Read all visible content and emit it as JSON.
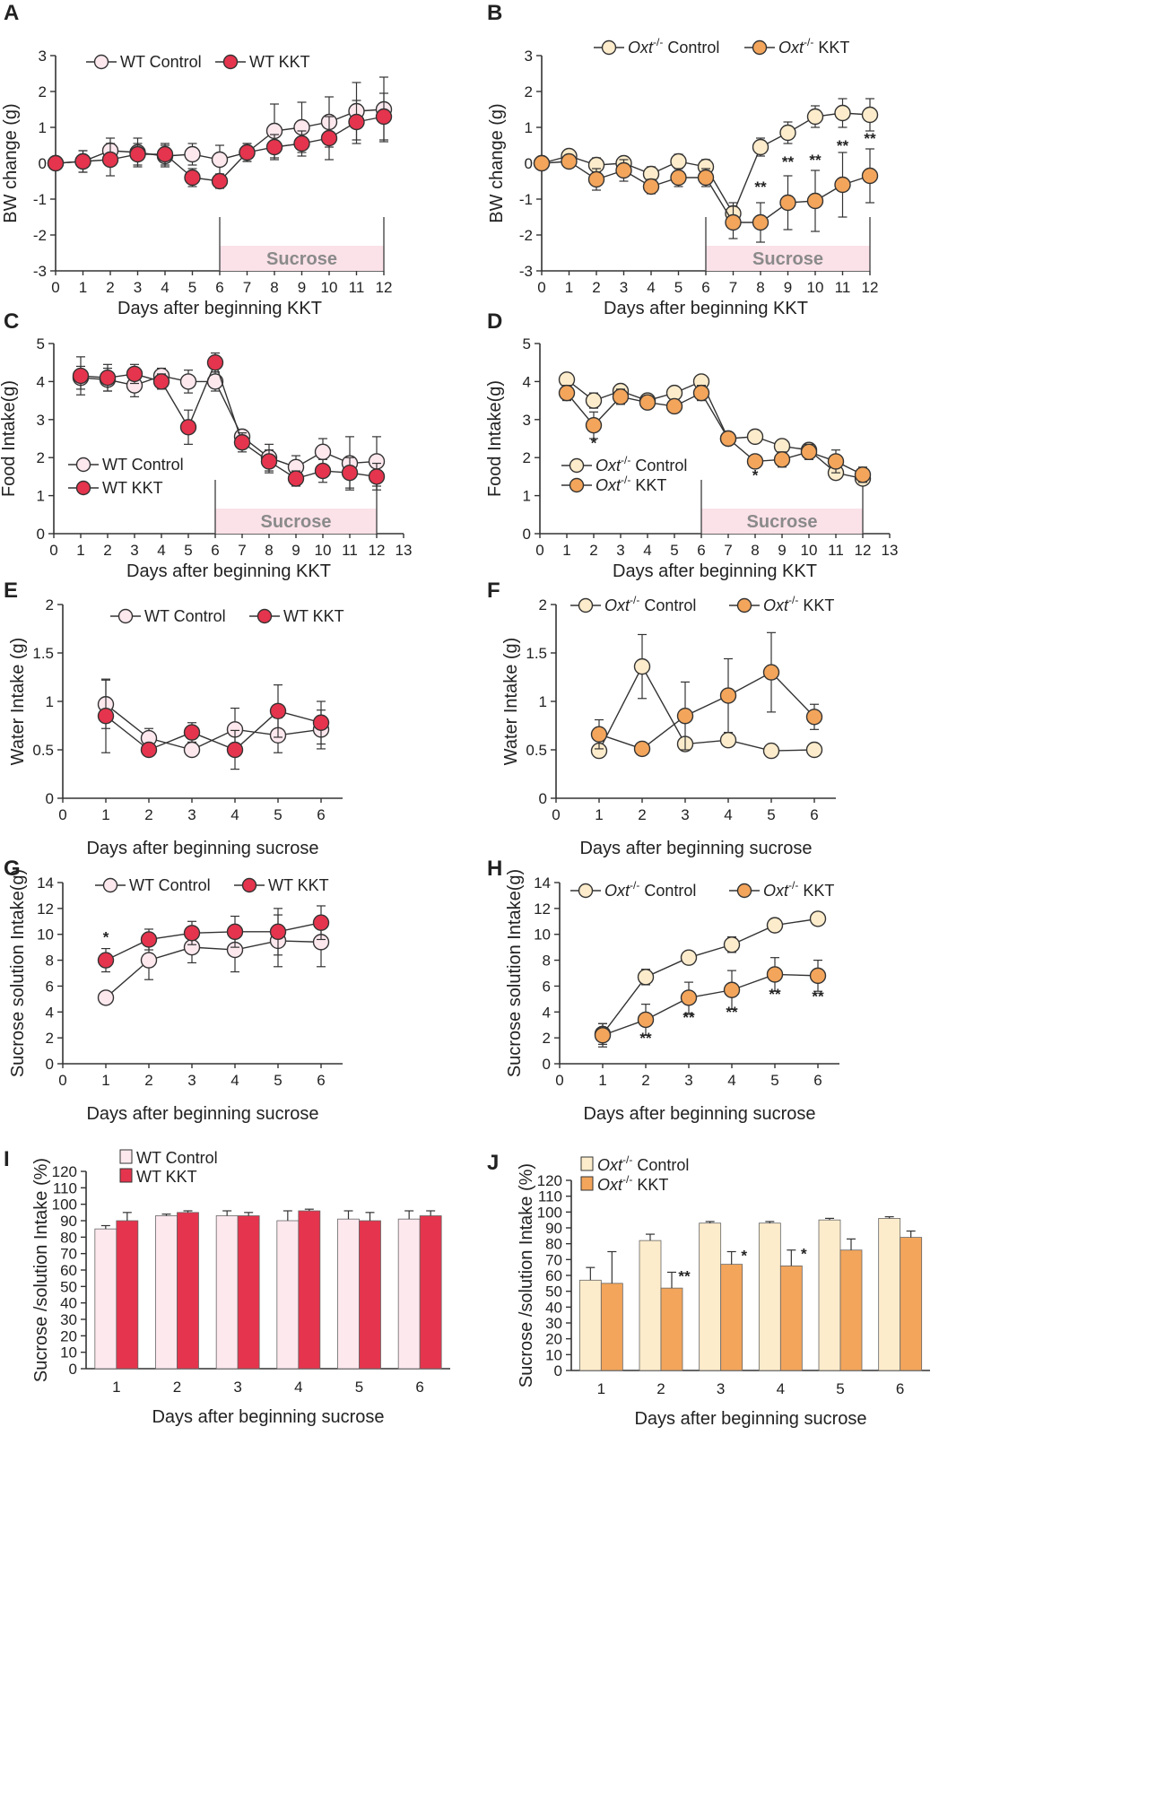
{
  "colors": {
    "wt_control": "#fde8ee",
    "wt_kkt": "#e5344d",
    "oxt_control": "#fdeccb",
    "oxt_kkt": "#f3a55b",
    "sucrose_band": "#fbe1e8",
    "axis": "#333333"
  },
  "chart_data": [
    {
      "id": "A",
      "type": "line",
      "xlabel": "Days after beginning  KKT",
      "ylabel": "BW change (g)",
      "xlim": [
        0,
        12
      ],
      "ylim": [
        -3,
        3
      ],
      "xticks": [
        0,
        1,
        2,
        3,
        4,
        5,
        6,
        7,
        8,
        9,
        10,
        11,
        12
      ],
      "yticks": [
        -3,
        -2,
        -1,
        0,
        1,
        2,
        3
      ],
      "x": [
        0,
        1,
        2,
        3,
        4,
        5,
        6,
        7,
        8,
        9,
        10,
        11,
        12
      ],
      "series": [
        {
          "name": "WT Control",
          "color_key": "wt_control",
          "values": [
            0,
            0.05,
            0.35,
            0.3,
            0.2,
            0.25,
            0.1,
            0.3,
            0.9,
            1.0,
            1.15,
            1.45,
            1.5
          ],
          "errors": [
            0,
            0.3,
            0.35,
            0.4,
            0.3,
            0.3,
            0.4,
            0.25,
            0.75,
            0.7,
            0.7,
            0.8,
            0.9
          ]
        },
        {
          "name": "WT KKT",
          "color_key": "wt_kkt",
          "values": [
            0,
            0.05,
            0.1,
            0.25,
            0.25,
            -0.4,
            -0.5,
            0.3,
            0.45,
            0.55,
            0.7,
            1.15,
            1.3
          ],
          "errors": [
            0,
            0.3,
            0.45,
            0.3,
            0.3,
            0.25,
            0.2,
            0.25,
            0.35,
            0.35,
            0.6,
            0.6,
            0.65
          ]
        }
      ],
      "sucrose_band": {
        "from": 6,
        "to": 12,
        "label": "Sucrose"
      },
      "significance": []
    },
    {
      "id": "B",
      "type": "line",
      "xlabel": "Days after beginning  KKT",
      "ylabel": "BW change (g)",
      "xlim": [
        0,
        12
      ],
      "ylim": [
        -3,
        3
      ],
      "xticks": [
        0,
        1,
        2,
        3,
        4,
        5,
        6,
        7,
        8,
        9,
        10,
        11,
        12
      ],
      "yticks": [
        -3,
        -2,
        -1,
        0,
        1,
        2,
        3
      ],
      "x": [
        0,
        1,
        2,
        3,
        4,
        5,
        6,
        7,
        8,
        9,
        10,
        11,
        12
      ],
      "series": [
        {
          "name": "Oxt⁻/⁻ Control",
          "color_key": "oxt_control",
          "values": [
            0,
            0.2,
            -0.05,
            0,
            -0.3,
            0.05,
            -0.1,
            -1.4,
            0.45,
            0.85,
            1.3,
            1.4,
            1.35
          ],
          "errors": [
            0,
            0.15,
            0.2,
            0.15,
            0.2,
            0.2,
            0.2,
            0.3,
            0.25,
            0.3,
            0.3,
            0.4,
            0.45
          ]
        },
        {
          "name": "Oxt⁻/⁻ KKT",
          "color_key": "oxt_kkt",
          "values": [
            0,
            0.05,
            -0.45,
            -0.2,
            -0.65,
            -0.4,
            -0.4,
            -1.65,
            -1.65,
            -1.1,
            -1.05,
            -0.6,
            -0.35
          ],
          "errors": [
            0,
            0.15,
            0.3,
            0.3,
            0.2,
            0.25,
            0.25,
            0.45,
            0.55,
            0.75,
            0.85,
            0.9,
            0.75
          ]
        }
      ],
      "sucrose_band": {
        "from": 6,
        "to": 12,
        "label": "Sucrose"
      },
      "significance": [
        {
          "x": 8,
          "y": -0.8,
          "label": "**"
        },
        {
          "x": 9,
          "y": -0.1,
          "label": "**"
        },
        {
          "x": 10,
          "y": -0.05,
          "label": "**"
        },
        {
          "x": 11,
          "y": 0.35,
          "label": "**"
        },
        {
          "x": 12,
          "y": 0.55,
          "label": "**"
        }
      ]
    },
    {
      "id": "C",
      "type": "line",
      "xlabel": "Days after beginning  KKT",
      "ylabel": "Food Intake(g)",
      "xlim": [
        0,
        13
      ],
      "ylim": [
        0,
        5
      ],
      "xticks": [
        0,
        1,
        2,
        3,
        4,
        5,
        6,
        7,
        8,
        9,
        10,
        11,
        12,
        13
      ],
      "yticks": [
        0,
        1,
        2,
        3,
        4,
        5
      ],
      "x": [
        1,
        2,
        3,
        4,
        5,
        6,
        7,
        8,
        9,
        10,
        11,
        12
      ],
      "series": [
        {
          "name": "WT Control",
          "color_key": "wt_control",
          "values": [
            4.1,
            4.05,
            3.9,
            4.15,
            4.0,
            4.0,
            2.55,
            2.0,
            1.75,
            2.15,
            1.85,
            1.9
          ],
          "errors": [
            0.3,
            0.3,
            0.3,
            0.2,
            0.3,
            0.25,
            0.15,
            0.35,
            0.3,
            0.35,
            0.7,
            0.65
          ]
        },
        {
          "name": "WT KKT",
          "color_key": "wt_kkt",
          "values": [
            4.15,
            4.1,
            4.2,
            4.0,
            2.8,
            4.5,
            2.4,
            1.9,
            1.45,
            1.65,
            1.6,
            1.5
          ],
          "errors": [
            0.5,
            0.35,
            0.25,
            0.2,
            0.45,
            0.25,
            0.25,
            0.3,
            0.2,
            0.3,
            0.4,
            0.35
          ]
        }
      ],
      "sucrose_band": {
        "from": 6,
        "to": 12,
        "label": "Sucrose"
      },
      "significance": []
    },
    {
      "id": "D",
      "type": "line",
      "xlabel": "Days after beginning  KKT",
      "ylabel": "Food Intake(g)",
      "xlim": [
        0,
        13
      ],
      "ylim": [
        0,
        5
      ],
      "xticks": [
        0,
        1,
        2,
        3,
        4,
        5,
        6,
        7,
        8,
        9,
        10,
        11,
        12,
        13
      ],
      "yticks": [
        0,
        1,
        2,
        3,
        4,
        5
      ],
      "x": [
        1,
        2,
        3,
        4,
        5,
        6,
        7,
        8,
        9,
        10,
        11,
        12
      ],
      "series": [
        {
          "name": "Oxt⁻/⁻ Control",
          "color_key": "oxt_control",
          "values": [
            4.05,
            3.5,
            3.75,
            3.5,
            3.7,
            4.0,
            2.5,
            2.55,
            2.3,
            2.2,
            1.6,
            1.45
          ],
          "errors": [
            0.15,
            0.2,
            0.15,
            0.15,
            0.15,
            0.15,
            0.15,
            0.15,
            0.15,
            0.15,
            0.15,
            0.15
          ]
        },
        {
          "name": "Oxt⁻/⁻ KKT",
          "color_key": "oxt_kkt",
          "values": [
            3.7,
            2.85,
            3.6,
            3.45,
            3.35,
            3.7,
            2.5,
            1.9,
            1.95,
            2.15,
            1.9,
            1.55
          ],
          "errors": [
            0.2,
            0.35,
            0.2,
            0.15,
            0.15,
            0.2,
            0.15,
            0.15,
            0.2,
            0.2,
            0.3,
            0.2
          ]
        }
      ],
      "sucrose_band": {
        "from": 6,
        "to": 12,
        "label": "Sucrose"
      },
      "significance": [
        {
          "x": 2,
          "y": 2.25,
          "label": "*"
        },
        {
          "x": 8,
          "y": 1.4,
          "label": "*"
        }
      ]
    },
    {
      "id": "E",
      "type": "line",
      "xlabel": "Days after beginning  sucrose",
      "ylabel": "Water Intake (g)",
      "xlim": [
        0,
        6.5
      ],
      "ylim": [
        0,
        2
      ],
      "xticks": [
        0,
        1,
        2,
        3,
        4,
        5,
        6
      ],
      "yticks": [
        0,
        0.5,
        1,
        1.5,
        2
      ],
      "x": [
        1,
        2,
        3,
        4,
        5,
        6
      ],
      "series": [
        {
          "name": "WT Control",
          "color_key": "wt_control",
          "values": [
            0.97,
            0.62,
            0.5,
            0.71,
            0.65,
            0.71
          ],
          "errors": [
            0.25,
            0.1,
            0.05,
            0.22,
            0.18,
            0.2
          ]
        },
        {
          "name": "WT KKT",
          "color_key": "wt_kkt",
          "values": [
            0.85,
            0.5,
            0.68,
            0.5,
            0.9,
            0.78
          ],
          "errors": [
            0.38,
            0.05,
            0.1,
            0.2,
            0.27,
            0.22
          ]
        }
      ],
      "significance": []
    },
    {
      "id": "F",
      "type": "line",
      "xlabel": "Days after beginning  sucrose",
      "ylabel": "Water Intake (g)",
      "xlim": [
        0,
        6.5
      ],
      "ylim": [
        0,
        2
      ],
      "xticks": [
        0,
        1,
        2,
        3,
        4,
        5,
        6
      ],
      "yticks": [
        0,
        0.5,
        1,
        1.5,
        2
      ],
      "x": [
        1,
        2,
        3,
        4,
        5,
        6
      ],
      "series": [
        {
          "name": "Oxt⁻/⁻ Control",
          "color_key": "oxt_control",
          "values": [
            0.49,
            1.36,
            0.56,
            0.6,
            0.49,
            0.5
          ],
          "errors": [
            0.05,
            0.33,
            0.05,
            0.05,
            0.03,
            0.03
          ]
        },
        {
          "name": "Oxt⁻/⁻ KKT",
          "color_key": "oxt_kkt",
          "values": [
            0.66,
            0.51,
            0.85,
            1.06,
            1.3,
            0.84
          ],
          "errors": [
            0.15,
            0.04,
            0.35,
            0.38,
            0.41,
            0.13
          ]
        }
      ],
      "significance": []
    },
    {
      "id": "G",
      "type": "line",
      "xlabel": "Days after beginning  sucrose",
      "ylabel": "Sucrose solution  Intake(g)",
      "xlim": [
        0,
        6.5
      ],
      "ylim": [
        0,
        14
      ],
      "xticks": [
        0,
        1,
        2,
        3,
        4,
        5,
        6
      ],
      "yticks": [
        0,
        2,
        4,
        6,
        8,
        10,
        12,
        14
      ],
      "x": [
        1,
        2,
        3,
        4,
        5,
        6
      ],
      "series": [
        {
          "name": "WT Control",
          "color_key": "wt_control",
          "values": [
            5.1,
            8.0,
            9.0,
            8.8,
            9.5,
            9.4
          ],
          "errors": [
            0.3,
            1.5,
            1.2,
            1.7,
            2.0,
            1.9
          ]
        },
        {
          "name": "WT KKT",
          "color_key": "wt_kkt",
          "values": [
            8.0,
            9.6,
            10.1,
            10.2,
            10.2,
            10.9
          ],
          "errors": [
            0.9,
            0.8,
            0.9,
            1.2,
            1.8,
            1.3
          ]
        }
      ],
      "significance": [
        {
          "x": 1,
          "y": 9.4,
          "label": "*"
        }
      ]
    },
    {
      "id": "H",
      "type": "line",
      "xlabel": "Days after beginning  sucrose",
      "ylabel": "Sucrose  solution  Intake(g)",
      "xlim": [
        0,
        6.5
      ],
      "ylim": [
        0,
        14
      ],
      "xticks": [
        0,
        1,
        2,
        3,
        4,
        5,
        6
      ],
      "yticks": [
        0,
        2,
        4,
        6,
        8,
        10,
        12,
        14
      ],
      "x": [
        1,
        2,
        3,
        4,
        5,
        6
      ],
      "series": [
        {
          "name": "Oxt⁻/⁻ Control",
          "color_key": "oxt_control",
          "values": [
            2.3,
            6.7,
            8.2,
            9.2,
            10.7,
            11.2
          ],
          "errors": [
            0.8,
            0.6,
            0.4,
            0.6,
            0.5,
            0.4
          ]
        },
        {
          "name": "Oxt⁻/⁻ KKT",
          "color_key": "oxt_kkt",
          "values": [
            2.2,
            3.4,
            5.1,
            5.7,
            6.9,
            6.8
          ],
          "errors": [
            0.9,
            1.2,
            1.2,
            1.5,
            1.3,
            1.2
          ]
        }
      ],
      "significance": [
        {
          "x": 2,
          "y": 1.6,
          "label": "**"
        },
        {
          "x": 3,
          "y": 3.2,
          "label": "**"
        },
        {
          "x": 4,
          "y": 3.6,
          "label": "**"
        },
        {
          "x": 5,
          "y": 5.0,
          "label": "**"
        },
        {
          "x": 6,
          "y": 4.8,
          "label": "**"
        }
      ]
    },
    {
      "id": "I",
      "type": "bar",
      "xlabel": "Days after beginning  sucrose",
      "ylabel": "Sucrose /solution Intake (%)",
      "ylim": [
        0,
        120
      ],
      "yticks": [
        0,
        10,
        20,
        30,
        40,
        50,
        60,
        70,
        80,
        90,
        100,
        110,
        120
      ],
      "categories": [
        "1",
        "2",
        "3",
        "4",
        "5",
        "6"
      ],
      "series": [
        {
          "name": "WT Control",
          "color_key": "wt_control",
          "values": [
            85,
            93,
            93,
            90,
            91,
            91
          ],
          "errors": [
            2,
            1,
            3,
            6,
            5,
            5
          ]
        },
        {
          "name": "WT KKT",
          "color_key": "wt_kkt",
          "values": [
            90,
            95,
            93,
            96,
            90,
            93
          ],
          "errors": [
            5,
            1,
            2,
            1,
            5,
            3
          ]
        }
      ],
      "significance": []
    },
    {
      "id": "J",
      "type": "bar",
      "xlabel": "Days after beginning  sucrose",
      "ylabel": "Sucrose /solution Intake (%)",
      "ylim": [
        0,
        120
      ],
      "yticks": [
        0,
        10,
        20,
        30,
        40,
        50,
        60,
        70,
        80,
        90,
        100,
        110,
        120
      ],
      "categories": [
        "1",
        "2",
        "3",
        "4",
        "5",
        "6"
      ],
      "series": [
        {
          "name": "Oxt⁻/⁻ Control",
          "color_key": "oxt_control",
          "values": [
            57,
            82,
            93,
            93,
            95,
            96
          ],
          "errors": [
            8,
            4,
            1,
            1,
            1,
            1
          ]
        },
        {
          "name": "Oxt⁻/⁻ KKT",
          "color_key": "oxt_kkt",
          "values": [
            55,
            52,
            67,
            66,
            76,
            84
          ],
          "errors": [
            20,
            10,
            8,
            10,
            7,
            4
          ]
        }
      ],
      "significance": [
        {
          "cat": 1,
          "series": 1,
          "label": "**"
        },
        {
          "cat": 2,
          "series": 1,
          "label": "*"
        },
        {
          "cat": 3,
          "series": 1,
          "label": "*"
        }
      ]
    }
  ]
}
